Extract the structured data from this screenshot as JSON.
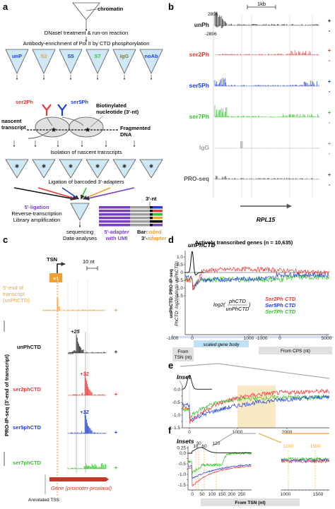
{
  "colors": {
    "unP": "#222222",
    "ser2": "#e53935",
    "ser5": "#1e3fd6",
    "ser7": "#35c42a",
    "igg": "#9e9e9e",
    "pro": "#555555",
    "orange": "#f0a030",
    "ochre": "#f5d9a0",
    "purple": "#7a3fc0",
    "gene": "#c0392b"
  },
  "panel_a": {
    "letter": "a",
    "chromatin": "chromatin",
    "step1": "DNaseI treatment & run-on reaction",
    "step2": "Antibody-enrichment of Pol II by CTD phosphorylation",
    "tubes": [
      "unP",
      "S2",
      "S5",
      "S7",
      "IgG",
      "noAb"
    ],
    "ser2Ph": "ser2Ph",
    "ser5Ph": "ser5Ph",
    "nascent": "nascent",
    "transcript": "transcript",
    "biotin1": "Biotinylated",
    "biotin2": "nucleotide (3'-nt)",
    "fragmented1": "Fragmented",
    "fragmented2": "DNA",
    "isolation": "Isolation of nascent transcripts",
    "ligation": "Ligation of barcoded 3'-adapters",
    "nt3": "3'-nt",
    "lig5": "5'-ligation",
    "rt": "Reverse-transcription",
    "amp": "Library amplification",
    "seq1": "sequencing",
    "seq2": "Data-analyses",
    "umi1": "5'-adapter",
    "umi2": "with UMI",
    "bc_pre": "Bar",
    "bc_mid": "coded",
    "bc_2": "3'-",
    "bc_3": "adapter"
  },
  "panel_b": {
    "letter": "b",
    "scale": "1kb",
    "ymax": "2896",
    "ymin": "-2896",
    "tracks": [
      "unPh",
      "ser2Ph",
      "ser5Ph",
      "ser7Ph",
      "IgG",
      "PRO-seq"
    ],
    "gene": "RPL15",
    "plus": "+",
    "minus": "-"
  },
  "panel_c": {
    "letter": "c",
    "tsn": "TSN",
    "plus1": "+1",
    "scale": "10 nt",
    "orange1": "5'-end of",
    "orange2": "transcript",
    "orange3": "(unPhCTD)",
    "yaxis": "PRO-IP-seq (3'-end of transcript)",
    "tracks": [
      "unPhCTD",
      "ser2phCTD",
      "ser5phCTD",
      "ser7phCTD"
    ],
    "peaks": [
      "+25",
      "+32",
      "+32"
    ],
    "gene": "Gene (promoter-proximal)",
    "tss": "Annotated TSS"
  },
  "panel_d": {
    "letter": "d",
    "title": "Actively transcribed genes (n = 10,635)",
    "unphctd": "unPhCTD",
    "ylabel1": "unPhCTD: PRO-IP-seq",
    "ylabel2": "PhCTD: log2(ratio to unPhCTD)",
    "yticks": [
      "1.0",
      "0.5",
      "0",
      "-0.5",
      "-1.0",
      "-1.5"
    ],
    "xticks": [
      "-1000",
      "0",
      "1000",
      "-1000",
      "0",
      "5000"
    ],
    "scaled": "scaled gene body",
    "from_tsn": "From TSN (nt)",
    "from_cps": "From CPS (nt)",
    "formula_pre": "log2(",
    "formula_num": "phCTD",
    "formula_den": "unPhCTD",
    "formula_post": ")",
    "legend": [
      "Ser2Ph CTD",
      "Ser5Ph CTD",
      "Ser7Ph CTD"
    ]
  },
  "panel_e": {
    "letter": "e",
    "inset": "Inset",
    "yticks": [
      "0.0",
      "-0.25",
      "-0.5",
      "-0.75",
      "-1.0",
      "-1.25",
      "-1.5"
    ],
    "xticks": [
      "0",
      "1000",
      "2000"
    ]
  },
  "panel_f": {
    "letter": "f",
    "insets": "Insets",
    "peaks": [
      "18",
      "30",
      "60",
      "120"
    ],
    "right_peaks": [
      "1100",
      "1500"
    ],
    "yticks": [
      "0.25",
      "0.0",
      "-0.25",
      "-0.5",
      "-0.75",
      "-1.0",
      "-1.25",
      "-1.5"
    ],
    "xticks_left": [
      "0",
      "50",
      "100",
      "150",
      "200",
      "250"
    ],
    "xticks_right": [
      "1000",
      "1500"
    ],
    "xlabel": "From TSN (nt)"
  }
}
